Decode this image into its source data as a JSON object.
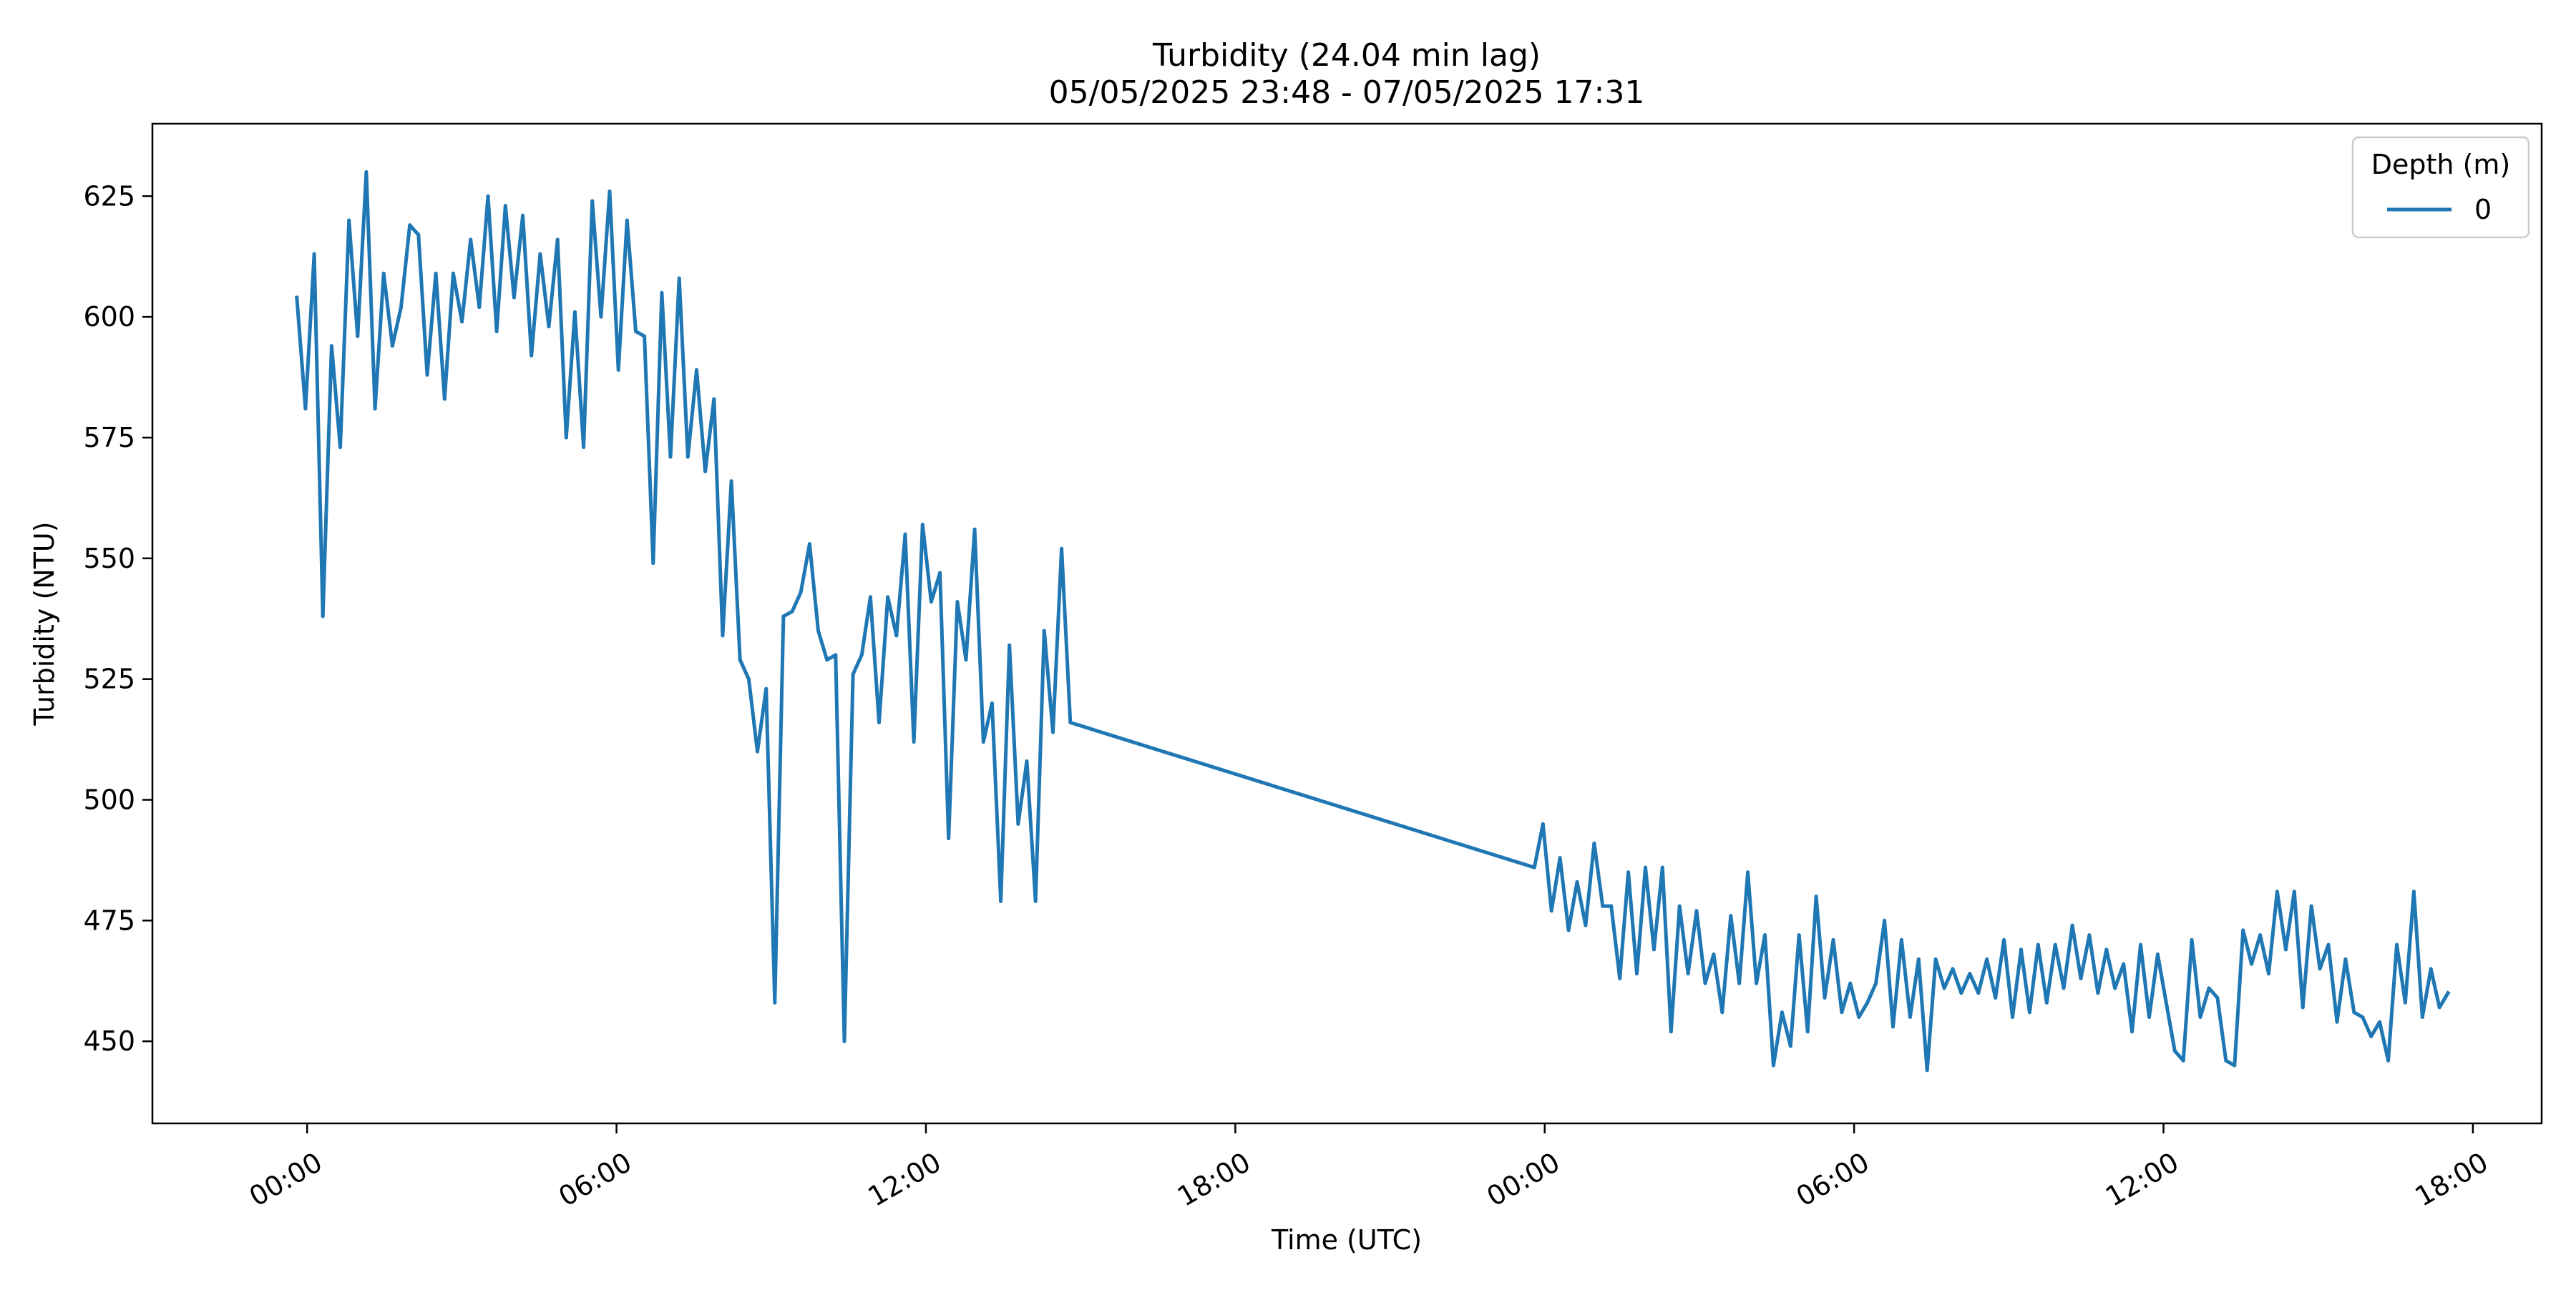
{
  "chart_data": {
    "type": "line",
    "title": "Turbidity (24.04 min lag)",
    "subtitle": "05/05/2025 23:48 - 07/05/2025 17:31",
    "xlabel": "Time (UTC)",
    "ylabel": "Turbidity (NTU)",
    "x_range": [
      "05/05/2025 21:00",
      "07/05/2025 19:20"
    ],
    "ylim": [
      433,
      640
    ],
    "y_ticks": [
      450,
      475,
      500,
      525,
      550,
      575,
      600,
      625
    ],
    "x_ticks": [
      {
        "t": "06/05/2025 00:00",
        "label": "00:00"
      },
      {
        "t": "06/05/2025 06:00",
        "label": "06:00"
      },
      {
        "t": "06/05/2025 12:00",
        "label": "12:00"
      },
      {
        "t": "06/05/2025 18:00",
        "label": "18:00"
      },
      {
        "t": "07/05/2025 00:00",
        "label": "00:00"
      },
      {
        "t": "07/05/2025 06:00",
        "label": "06:00"
      },
      {
        "t": "07/05/2025 12:00",
        "label": "12:00"
      },
      {
        "t": "07/05/2025 18:00",
        "label": "18:00"
      }
    ],
    "grid": false,
    "legend": {
      "title": "Depth (m)",
      "placement": "top-right"
    },
    "series": [
      {
        "name": "0",
        "color": "#1f77b4",
        "segments": [
          {
            "start": "05/05/2025 23:48",
            "end": "06/05/2025 14:48",
            "values": [
              604,
              581,
              613,
              538,
              594,
              573,
              620,
              596,
              630,
              581,
              609,
              594,
              602,
              619,
              617,
              588,
              609,
              583,
              609,
              599,
              616,
              602,
              625,
              597,
              623,
              604,
              621,
              592,
              613,
              598,
              616,
              575,
              601,
              573,
              624,
              600,
              626,
              589,
              620,
              597,
              596,
              549,
              605,
              571,
              608,
              571,
              589,
              568,
              583,
              534,
              566,
              529,
              525,
              510,
              523,
              458,
              538,
              539,
              543,
              553,
              535,
              529,
              530,
              450,
              526,
              530,
              542,
              516,
              542,
              534,
              555,
              512,
              557,
              541,
              547,
              492,
              541,
              529,
              556,
              512,
              520,
              479,
              532,
              495,
              508,
              479,
              535,
              514,
              552,
              516
            ]
          },
          {
            "start": "06/05/2025 23:48",
            "end": "07/05/2025 17:31",
            "values": [
              486,
              495,
              477,
              488,
              473,
              483,
              474,
              491,
              478,
              478,
              463,
              485,
              464,
              486,
              469,
              486,
              452,
              478,
              464,
              477,
              462,
              468,
              456,
              476,
              462,
              485,
              462,
              472,
              445,
              456,
              449,
              472,
              452,
              480,
              459,
              471,
              456,
              462,
              455,
              458,
              462,
              475,
              453,
              471,
              455,
              467,
              444,
              467,
              461,
              465,
              460,
              464,
              460,
              467,
              459,
              471,
              455,
              469,
              456,
              470,
              458,
              470,
              461,
              474,
              463,
              472,
              460,
              469,
              461,
              466,
              452,
              470,
              455,
              468,
              458,
              448,
              446,
              471,
              455,
              461,
              459,
              446,
              445,
              473,
              466,
              472,
              464,
              481,
              469,
              481,
              457,
              478,
              465,
              470,
              454,
              467,
              456,
              455,
              451,
              454,
              446,
              470,
              458,
              481,
              455,
              465,
              457,
              460
            ]
          }
        ]
      }
    ]
  }
}
